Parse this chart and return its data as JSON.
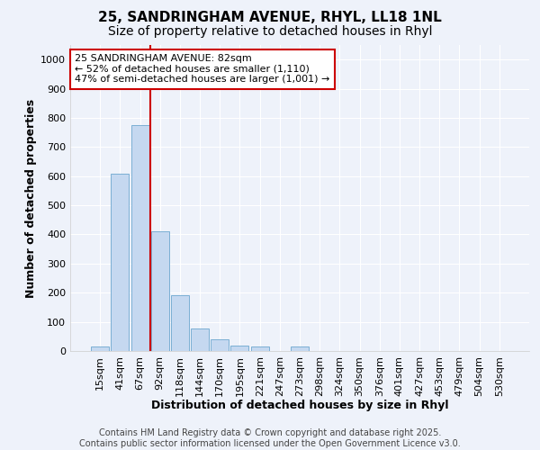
{
  "title_line1": "25, SANDRINGHAM AVENUE, RHYL, LL18 1NL",
  "title_line2": "Size of property relative to detached houses in Rhyl",
  "bar_labels": [
    "15sqm",
    "41sqm",
    "67sqm",
    "92sqm",
    "118sqm",
    "144sqm",
    "170sqm",
    "195sqm",
    "221sqm",
    "247sqm",
    "273sqm",
    "298sqm",
    "324sqm",
    "350sqm",
    "376sqm",
    "401sqm",
    "427sqm",
    "453sqm",
    "479sqm",
    "504sqm",
    "530sqm"
  ],
  "bar_values": [
    15,
    608,
    775,
    410,
    190,
    78,
    40,
    18,
    15,
    0,
    15,
    0,
    0,
    0,
    0,
    0,
    0,
    0,
    0,
    0,
    0
  ],
  "bar_color": "#c5d8f0",
  "bar_edge_color": "#7bafd4",
  "vline_color": "#cc0000",
  "vline_x_index": 2.5,
  "xlabel": "Distribution of detached houses by size in Rhyl",
  "ylabel": "Number of detached properties",
  "ylim": [
    0,
    1050
  ],
  "yticks": [
    0,
    100,
    200,
    300,
    400,
    500,
    600,
    700,
    800,
    900,
    1000
  ],
  "annotation_line1": "25 SANDRINGHAM AVENUE: 82sqm",
  "annotation_line2": "← 52% of detached houses are smaller (1,110)",
  "annotation_line3": "47% of semi-detached houses are larger (1,001) →",
  "annotation_box_edgecolor": "#cc0000",
  "annotation_box_facecolor": "#ffffff",
  "background_color": "#eef2fa",
  "grid_color": "#ffffff",
  "footer_line1": "Contains HM Land Registry data © Crown copyright and database right 2025.",
  "footer_line2": "Contains public sector information licensed under the Open Government Licence v3.0.",
  "title_fontsize": 11,
  "subtitle_fontsize": 10,
  "axis_label_fontsize": 9,
  "tick_fontsize": 8,
  "annotation_fontsize": 8,
  "footer_fontsize": 7
}
